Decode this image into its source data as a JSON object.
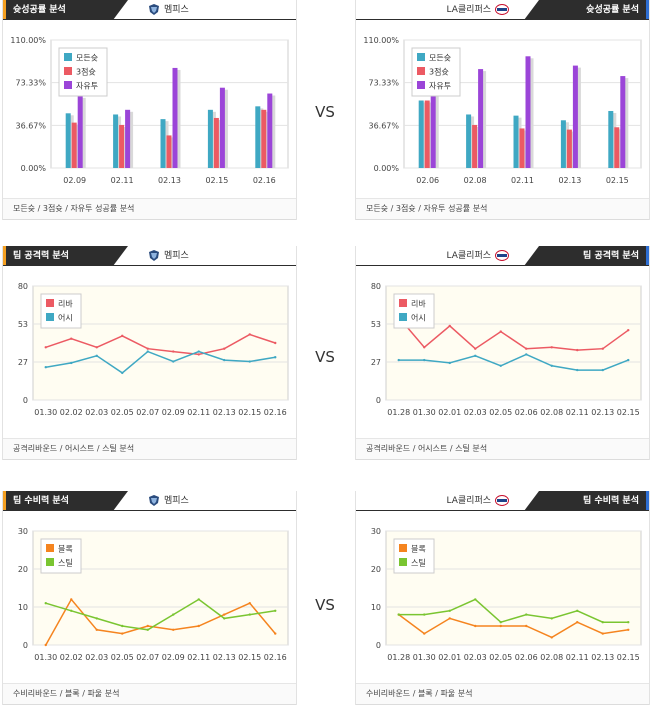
{
  "vs_label": "VS",
  "home_team": "멤피스",
  "away_team": "LA클리퍼스",
  "colors": {
    "teal": "#3fa8c3",
    "red": "#ec5a63",
    "purple": "#9b45d8",
    "orange": "#f5841f",
    "green": "#7ac531",
    "header_dark": "#2d2d2d",
    "home_accent": "#f5a021",
    "away_accent": "#2e6fd4"
  },
  "sections": {
    "shooting": {
      "title": "슛성공률 분석",
      "footer": "모든슛 / 3점슛 / 자유투 성공률 분석"
    },
    "offense": {
      "title": "팀 공격력 분석",
      "footer": "공격리바운드 / 어시스트 / 스틸 분석"
    },
    "defense": {
      "title": "팀 수비력 분석",
      "footer": "수비리바운드 / 블록 / 파울 분석"
    }
  },
  "chart_data": [
    {
      "id": "home_shooting",
      "type": "bar",
      "team": "멤피스",
      "categories": [
        "02.09",
        "02.11",
        "02.13",
        "02.15",
        "02.16"
      ],
      "series": [
        {
          "name": "모든슛",
          "color": "#3fa8c3",
          "values": [
            47,
            46,
            42,
            50,
            53
          ]
        },
        {
          "name": "3점슛",
          "color": "#ec5a63",
          "values": [
            39,
            37,
            28,
            43,
            50
          ]
        },
        {
          "name": "자유투",
          "color": "#9b45d8",
          "values": [
            62,
            50,
            86,
            69,
            64
          ]
        }
      ],
      "ylim": [
        0,
        110
      ],
      "yticks": [
        "0.00%",
        "36.67%",
        "73.33%",
        "110.00%"
      ],
      "legend": "top-left"
    },
    {
      "id": "away_shooting",
      "type": "bar",
      "team": "LA클리퍼스",
      "categories": [
        "02.06",
        "02.08",
        "02.11",
        "02.13",
        "02.15"
      ],
      "series": [
        {
          "name": "모든슛",
          "color": "#3fa8c3",
          "values": [
            58,
            46,
            45,
            41,
            49
          ]
        },
        {
          "name": "3점슛",
          "color": "#ec5a63",
          "values": [
            58,
            37,
            34,
            33,
            35
          ]
        },
        {
          "name": "자유투",
          "color": "#9b45d8",
          "values": [
            72,
            85,
            96,
            88,
            79
          ]
        }
      ],
      "ylim": [
        0,
        110
      ],
      "yticks": [
        "0.00%",
        "36.67%",
        "73.33%",
        "110.00%"
      ],
      "legend": "top-left"
    },
    {
      "id": "home_offense",
      "type": "line",
      "team": "멤피스",
      "categories": [
        "01.30",
        "02.02",
        "02.03",
        "02.05",
        "02.07",
        "02.09",
        "02.11",
        "02.13",
        "02.15",
        "02.16"
      ],
      "series": [
        {
          "name": "리바",
          "color": "#ec5a63",
          "values": [
            37,
            43,
            37,
            45,
            36,
            34,
            32,
            36,
            46,
            40
          ]
        },
        {
          "name": "어시",
          "color": "#3fa8c3",
          "values": [
            23,
            26,
            31,
            19,
            34,
            27,
            34,
            28,
            27,
            30
          ]
        }
      ],
      "ylim": [
        0,
        80
      ],
      "yticks": [
        "0",
        "27",
        "53",
        "80"
      ],
      "legend": "top-left"
    },
    {
      "id": "away_offense",
      "type": "line",
      "team": "LA클리퍼스",
      "categories": [
        "01.28",
        "01.30",
        "02.01",
        "02.03",
        "02.05",
        "02.06",
        "02.08",
        "02.11",
        "02.13",
        "02.15"
      ],
      "series": [
        {
          "name": "리바",
          "color": "#ec5a63",
          "values": [
            58,
            37,
            52,
            36,
            48,
            36,
            37,
            35,
            36,
            49
          ]
        },
        {
          "name": "어시",
          "color": "#3fa8c3",
          "values": [
            28,
            28,
            26,
            31,
            24,
            32,
            24,
            21,
            21,
            28
          ]
        }
      ],
      "ylim": [
        0,
        80
      ],
      "yticks": [
        "0",
        "27",
        "53",
        "80"
      ],
      "legend": "top-left"
    },
    {
      "id": "home_defense",
      "type": "line",
      "team": "멤피스",
      "categories": [
        "01.30",
        "02.02",
        "02.03",
        "02.05",
        "02.07",
        "02.09",
        "02.11",
        "02.13",
        "02.15",
        "02.16"
      ],
      "series": [
        {
          "name": "블록",
          "color": "#f5841f",
          "values": [
            0,
            12,
            4,
            3,
            5,
            4,
            5,
            8,
            11,
            3
          ]
        },
        {
          "name": "스틸",
          "color": "#7ac531",
          "values": [
            11,
            9,
            7,
            5,
            4,
            8,
            12,
            7,
            8,
            9
          ]
        }
      ],
      "ylim": [
        0,
        30
      ],
      "yticks": [
        "0",
        "10",
        "20",
        "30"
      ],
      "legend": "top-left"
    },
    {
      "id": "away_defense",
      "type": "line",
      "team": "LA클리퍼스",
      "categories": [
        "01.28",
        "01.30",
        "02.01",
        "02.03",
        "02.05",
        "02.06",
        "02.08",
        "02.11",
        "02.13",
        "02.15"
      ],
      "series": [
        {
          "name": "블록",
          "color": "#f5841f",
          "values": [
            8,
            3,
            7,
            5,
            5,
            5,
            2,
            6,
            3,
            4
          ]
        },
        {
          "name": "스틸",
          "color": "#7ac531",
          "values": [
            8,
            8,
            9,
            12,
            6,
            8,
            7,
            9,
            6,
            6
          ]
        }
      ],
      "ylim": [
        0,
        30
      ],
      "yticks": [
        "0",
        "10",
        "20",
        "30"
      ],
      "legend": "top-left"
    }
  ]
}
